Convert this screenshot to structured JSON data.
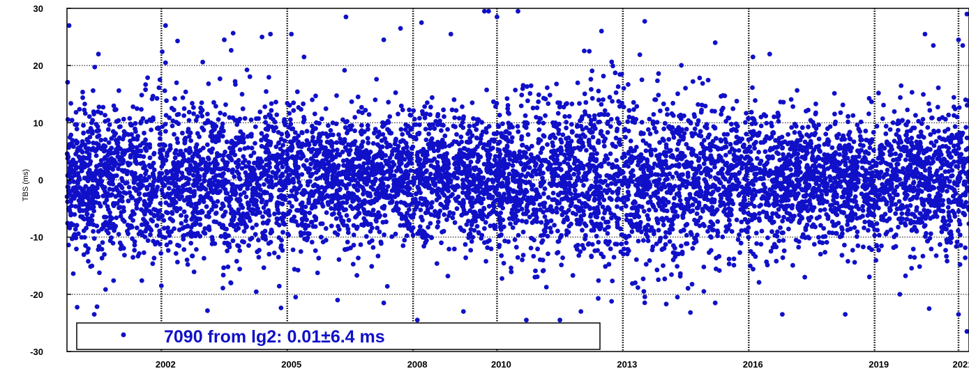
{
  "chart_data": {
    "type": "scatter",
    "ylabel": "TBS (ms)",
    "xlabel": "",
    "title": "",
    "ylim": [
      -30,
      30
    ],
    "xlim": [
      1999.75,
      2021.25
    ],
    "y_ticks": [
      -30,
      -20,
      -10,
      0,
      10,
      20,
      30
    ],
    "x_ticks": [
      2002,
      2005,
      2008,
      2010,
      2013,
      2016,
      2019,
      2021
    ],
    "grid": true,
    "legend": {
      "placement": "bottom-left",
      "text": "7090 from lg2: 0.01±6.4 ms"
    },
    "marker_color": "#1010c8",
    "series": [
      {
        "name": "7090 from lg2",
        "count": 7090,
        "mean": 0.01,
        "std": 6.4,
        "sample_points": [
          [
            1999.8,
            27.0
          ],
          [
            2000.5,
            22.0
          ],
          [
            2002.1,
            27.0
          ],
          [
            2002.1,
            20.5
          ],
          [
            2003.5,
            24.5
          ],
          [
            2004.4,
            25.0
          ],
          [
            2004.6,
            25.5
          ],
          [
            2005.1,
            25.5
          ],
          [
            2005.4,
            21.5
          ],
          [
            2006.4,
            28.5
          ],
          [
            2007.3,
            24.5
          ],
          [
            2007.7,
            26.5
          ],
          [
            2008.2,
            27.5
          ],
          [
            2008.9,
            25.5
          ],
          [
            2009.7,
            29.5
          ],
          [
            2009.8,
            29.5
          ],
          [
            2010.0,
            28.5
          ],
          [
            2010.5,
            29.5
          ],
          [
            2012.2,
            22.5
          ],
          [
            2015.2,
            24.0
          ],
          [
            2016.1,
            21.5
          ],
          [
            2016.5,
            22.0
          ],
          [
            2020.2,
            25.5
          ],
          [
            2020.4,
            23.5
          ],
          [
            2021.0,
            24.5
          ],
          [
            2021.2,
            29.0
          ],
          [
            2021.1,
            23.5
          ],
          [
            2000.4,
            -23.5
          ],
          [
            2002.0,
            -18.5
          ],
          [
            2005.2,
            -20.5
          ],
          [
            2006.2,
            -21.0
          ],
          [
            2007.3,
            -21.5
          ],
          [
            2008.1,
            -24.5
          ],
          [
            2009.2,
            -23.0
          ],
          [
            2010.7,
            -24.5
          ],
          [
            2011.5,
            -24.5
          ],
          [
            2012.0,
            -23.0
          ],
          [
            2014.3,
            -20.5
          ],
          [
            2015.2,
            -21.5
          ],
          [
            2016.8,
            -23.5
          ],
          [
            2018.3,
            -23.5
          ],
          [
            2020.3,
            -22.5
          ],
          [
            2021.2,
            -26.5
          ],
          [
            2021.0,
            -23.5
          ],
          [
            2019.6,
            -20.0
          ],
          [
            2013.5,
            -19.5
          ]
        ]
      }
    ]
  }
}
